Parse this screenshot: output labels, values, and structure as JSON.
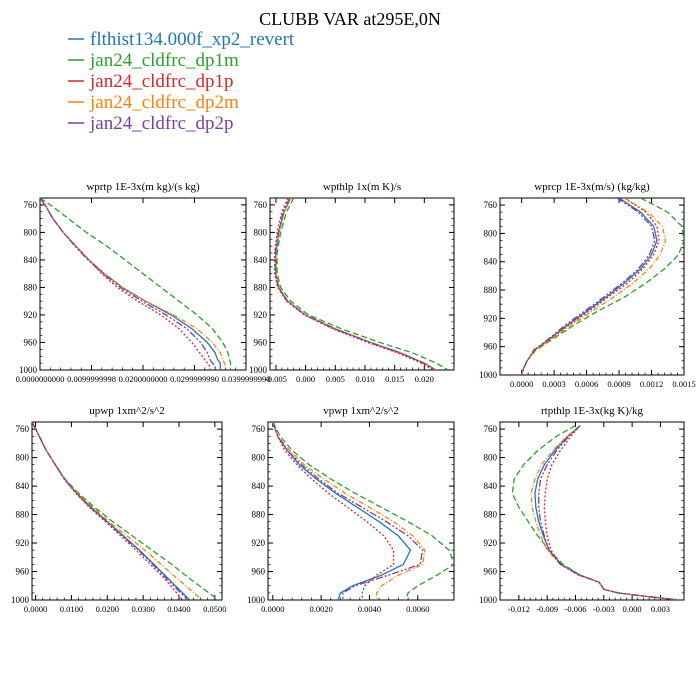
{
  "title": "CLUBB VAR at295E,0N",
  "legend": [
    {
      "name": "flthist134.000f_xp2_revert",
      "color": "#1f77b4"
    },
    {
      "name": "jan24_cldfrc_dp1m",
      "color": "#2ca02c"
    },
    {
      "name": "jan24_cldfrc_dp1p",
      "color": "#d62728"
    },
    {
      "name": "jan24_cldfrc_dp2m",
      "color": "#ff7f0e"
    },
    {
      "name": "jan24_cldfrc_dp2p",
      "color": "#7b3fa0"
    }
  ],
  "chart_data": [
    {
      "type": "line",
      "title": "wprtp  1E-3x(m kg)/(s kg)",
      "xlim": [
        0,
        0.04
      ],
      "ylim": [
        750,
        1000
      ],
      "y_inverted": true,
      "xticks": [
        0,
        0.01,
        0.02,
        0.03,
        0.04
      ],
      "xtick_labels": [
        "0.0000000000",
        "0.0099999998",
        "0.0200000000",
        "0.0299999990",
        "0.0399999990"
      ],
      "yticks": [
        760,
        800,
        840,
        880,
        920,
        960,
        1000
      ],
      "y": [
        750,
        760,
        780,
        800,
        820,
        840,
        860,
        880,
        900,
        920,
        940,
        960,
        975,
        985,
        990,
        995,
        1000
      ],
      "series": [
        {
          "x": [
            0.0,
            0.001,
            0.0025,
            0.0045,
            0.007,
            0.0095,
            0.0125,
            0.016,
            0.0205,
            0.0255,
            0.0295,
            0.0325,
            0.034,
            0.0345,
            0.035,
            0.035,
            0.035
          ]
        },
        {
          "x": [
            0.0,
            0.002,
            0.0055,
            0.009,
            0.013,
            0.0165,
            0.02,
            0.0235,
            0.027,
            0.0305,
            0.0335,
            0.0355,
            0.0365,
            0.0368,
            0.037,
            0.037,
            0.037
          ]
        },
        {
          "x": [
            0.0,
            0.001,
            0.0025,
            0.0045,
            0.007,
            0.0095,
            0.012,
            0.015,
            0.019,
            0.0235,
            0.027,
            0.0295,
            0.031,
            0.032,
            0.0325,
            0.033,
            0.033
          ]
        },
        {
          "x": [
            0.0,
            0.001,
            0.0025,
            0.0045,
            0.007,
            0.0095,
            0.0125,
            0.016,
            0.0205,
            0.026,
            0.0305,
            0.0335,
            0.035,
            0.0355,
            0.0358,
            0.036,
            0.036
          ]
        },
        {
          "x": [
            0.0,
            0.001,
            0.0025,
            0.0045,
            0.0068,
            0.0093,
            0.0123,
            0.0156,
            0.0198,
            0.0245,
            0.0285,
            0.0312,
            0.0325,
            0.033,
            0.0335,
            0.034,
            0.034
          ]
        }
      ]
    },
    {
      "type": "line",
      "title": "wpthlp  1x(m K)/s",
      "xlim": [
        -0.006,
        0.025
      ],
      "ylim": [
        750,
        1000
      ],
      "y_inverted": true,
      "xticks": [
        -0.005,
        0,
        0.005,
        0.01,
        0.015,
        0.02
      ],
      "xtick_labels": [
        "-0.005",
        "0.000",
        "0.005",
        "0.010",
        "0.015",
        "0.020"
      ],
      "yticks": [
        760,
        800,
        840,
        880,
        920,
        960,
        1000
      ],
      "y": [
        750,
        770,
        800,
        830,
        860,
        880,
        900,
        920,
        940,
        960,
        975,
        990,
        1000
      ],
      "series": [
        {
          "x": [
            -0.0025,
            -0.0036,
            -0.0045,
            -0.005,
            -0.005,
            -0.0045,
            -0.003,
            0.0,
            0.005,
            0.011,
            0.016,
            0.02,
            0.022
          ]
        },
        {
          "x": [
            -0.002,
            -0.0032,
            -0.0042,
            -0.0048,
            -0.0048,
            -0.0042,
            -0.0025,
            0.0005,
            0.006,
            0.0125,
            0.018,
            0.022,
            0.024
          ]
        },
        {
          "x": [
            -0.003,
            -0.004,
            -0.0048,
            -0.0052,
            -0.0052,
            -0.0047,
            -0.0032,
            -0.0002,
            0.0045,
            0.0105,
            0.0155,
            0.0195,
            0.0215
          ]
        },
        {
          "x": [
            -0.0025,
            -0.0036,
            -0.0045,
            -0.005,
            -0.005,
            -0.0045,
            -0.003,
            0.0,
            0.005,
            0.011,
            0.016,
            0.02,
            0.022
          ]
        },
        {
          "x": [
            -0.0027,
            -0.0038,
            -0.0046,
            -0.0051,
            -0.0051,
            -0.0046,
            -0.0031,
            -0.0001,
            0.0048,
            0.0108,
            0.0158,
            0.0198,
            0.0218
          ]
        }
      ]
    },
    {
      "type": "line",
      "title": "wprcp  1E-3x(m/s) (kg/kg)",
      "xlim": [
        -0.0002,
        0.0015
      ],
      "ylim": [
        750,
        1000
      ],
      "y_inverted": true,
      "xticks": [
        0,
        0.0003,
        0.0006,
        0.0009,
        0.0012,
        0.0015
      ],
      "xtick_labels": [
        "0.0000",
        "0.0003",
        "0.0006",
        "0.0009",
        "0.0012",
        "0.0015"
      ],
      "yticks": [
        760,
        800,
        840,
        880,
        920,
        960,
        1000
      ],
      "y": [
        750,
        770,
        790,
        810,
        830,
        850,
        870,
        890,
        910,
        930,
        950,
        965,
        980,
        990,
        1000
      ],
      "series": [
        {
          "x": [
            0.0009,
            0.0011,
            0.00122,
            0.00125,
            0.0012,
            0.0011,
            0.00095,
            0.00078,
            0.0006,
            0.00042,
            0.00025,
            0.00012,
            5e-05,
            2e-05,
            0.0
          ]
        },
        {
          "x": [
            0.0011,
            0.00135,
            0.00148,
            0.0015,
            0.00145,
            0.00132,
            0.00115,
            0.00095,
            0.0007,
            0.00048,
            0.00028,
            0.00013,
            5e-05,
            2e-05,
            0.0
          ]
        },
        {
          "x": [
            0.00095,
            0.00115,
            0.00125,
            0.00127,
            0.00122,
            0.00112,
            0.00098,
            0.0008,
            0.00062,
            0.00043,
            0.00026,
            0.00012,
            5e-05,
            2e-05,
            0.0
          ]
        },
        {
          "x": [
            0.00095,
            0.00117,
            0.0013,
            0.00133,
            0.00128,
            0.00118,
            0.00103,
            0.00085,
            0.00065,
            0.00045,
            0.00027,
            0.00012,
            5e-05,
            2e-05,
            0.0
          ]
        },
        {
          "x": [
            0.00088,
            0.00108,
            0.0012,
            0.00123,
            0.00118,
            0.00108,
            0.00093,
            0.00076,
            0.00058,
            0.0004,
            0.00024,
            0.00011,
            5e-05,
            2e-05,
            0.0
          ]
        }
      ]
    },
    {
      "type": "line",
      "title": "upwp  1xm^2/s^2",
      "xlim": [
        -0.001,
        0.052
      ],
      "ylim": [
        750,
        1000
      ],
      "y_inverted": true,
      "xticks": [
        0,
        0.01,
        0.02,
        0.03,
        0.04,
        0.05
      ],
      "xtick_labels": [
        "0.0000",
        "0.0100",
        "0.0200",
        "0.0300",
        "0.0400",
        "0.0500"
      ],
      "yticks": [
        760,
        800,
        840,
        880,
        920,
        960,
        1000
      ],
      "y": [
        750,
        770,
        790,
        810,
        830,
        850,
        870,
        890,
        910,
        930,
        950,
        970,
        985,
        1000
      ],
      "series": [
        {
          "x": [
            -0.001,
            0.001,
            0.003,
            0.0055,
            0.008,
            0.0115,
            0.0155,
            0.02,
            0.0245,
            0.029,
            0.033,
            0.037,
            0.04,
            0.043
          ]
        },
        {
          "x": [
            -0.001,
            0.001,
            0.003,
            0.0055,
            0.0082,
            0.012,
            0.0165,
            0.0215,
            0.027,
            0.0325,
            0.038,
            0.043,
            0.047,
            0.051
          ]
        },
        {
          "x": [
            -0.001,
            0.001,
            0.003,
            0.0055,
            0.008,
            0.0112,
            0.015,
            0.0195,
            0.0238,
            0.028,
            0.032,
            0.036,
            0.0385,
            0.041
          ]
        },
        {
          "x": [
            -0.001,
            0.001,
            0.003,
            0.0055,
            0.0081,
            0.0117,
            0.016,
            0.0205,
            0.0255,
            0.0305,
            0.035,
            0.0395,
            0.043,
            0.0465
          ]
        },
        {
          "x": [
            -0.001,
            0.001,
            0.003,
            0.0055,
            0.008,
            0.0114,
            0.0153,
            0.0198,
            0.0242,
            0.0287,
            0.0327,
            0.0365,
            0.0395,
            0.0425
          ]
        }
      ]
    },
    {
      "type": "line",
      "title": "vpwp  1xm^2/s^2",
      "xlim": [
        -0.0002,
        0.0075
      ],
      "ylim": [
        750,
        1000
      ],
      "y_inverted": true,
      "xticks": [
        0,
        0.002,
        0.004,
        0.006
      ],
      "xtick_labels": [
        "0.0000",
        "0.0020",
        "0.0040",
        "0.0060"
      ],
      "yticks": [
        760,
        800,
        840,
        880,
        920,
        960,
        1000
      ],
      "y": [
        750,
        770,
        790,
        810,
        830,
        850,
        870,
        890,
        910,
        930,
        950,
        965,
        980,
        990,
        1000
      ],
      "series": [
        {
          "x": [
            0.0,
            0.0002,
            0.0006,
            0.0011,
            0.0018,
            0.0026,
            0.0035,
            0.0044,
            0.0052,
            0.0057,
            0.0054,
            0.0045,
            0.0033,
            0.0028,
            0.0027
          ]
        },
        {
          "x": [
            0.0,
            0.0003,
            0.0008,
            0.0015,
            0.0024,
            0.0034,
            0.0045,
            0.0056,
            0.0066,
            0.0073,
            0.0075,
            0.0068,
            0.006,
            0.0056,
            0.0055
          ]
        },
        {
          "x": [
            0.0,
            0.0002,
            0.0005,
            0.001,
            0.0016,
            0.0023,
            0.0031,
            0.0039,
            0.0046,
            0.005,
            0.005,
            0.0043,
            0.0038,
            0.0037,
            0.0037
          ]
        },
        {
          "x": [
            0.0,
            0.0002,
            0.0007,
            0.0013,
            0.0021,
            0.003,
            0.004,
            0.005,
            0.0058,
            0.0063,
            0.0062,
            0.0052,
            0.0045,
            0.0043,
            0.0043
          ]
        },
        {
          "x": [
            0.0,
            0.0002,
            0.0006,
            0.0012,
            0.0019,
            0.0027,
            0.0037,
            0.0047,
            0.0056,
            0.0062,
            0.0061,
            0.0048,
            0.0034,
            0.0029,
            0.0029
          ]
        }
      ]
    },
    {
      "type": "line",
      "title": "rtpthlp  1E-3x(kg K)/kg",
      "xlim": [
        -0.014,
        0.0055
      ],
      "ylim": [
        750,
        1000
      ],
      "y_inverted": true,
      "xticks": [
        -0.012,
        -0.009,
        -0.006,
        -0.003,
        0,
        0.003
      ],
      "xtick_labels": [
        "-0.012",
        "-0.009",
        "-0.006",
        "-0.003",
        "0.000",
        "0.003"
      ],
      "yticks": [
        760,
        800,
        840,
        880,
        920,
        960,
        1000
      ],
      "y": [
        755,
        770,
        790,
        810,
        830,
        850,
        870,
        890,
        910,
        930,
        950,
        965,
        975,
        985,
        990,
        995,
        1000
      ],
      "series": [
        {
          "x": [
            -0.0055,
            -0.0068,
            -0.0082,
            -0.0093,
            -0.01,
            -0.0103,
            -0.0102,
            -0.0099,
            -0.0094,
            -0.0088,
            -0.0075,
            -0.0055,
            -0.0035,
            -0.003,
            -0.0015,
            0.0015,
            0.005
          ]
        },
        {
          "x": [
            -0.006,
            -0.008,
            -0.01,
            -0.0115,
            -0.0125,
            -0.0127,
            -0.012,
            -0.011,
            -0.01,
            -0.0088,
            -0.0073,
            -0.0055,
            -0.0035,
            -0.003,
            -0.0015,
            0.0015,
            0.005
          ]
        },
        {
          "x": [
            -0.0055,
            -0.0065,
            -0.0076,
            -0.0085,
            -0.009,
            -0.0092,
            -0.0093,
            -0.0092,
            -0.009,
            -0.0086,
            -0.0076,
            -0.0057,
            -0.0035,
            -0.003,
            -0.0015,
            0.0015,
            0.005
          ]
        },
        {
          "x": [
            -0.0055,
            -0.0069,
            -0.0084,
            -0.0096,
            -0.0103,
            -0.0107,
            -0.0106,
            -0.0102,
            -0.0097,
            -0.009,
            -0.0076,
            -0.0056,
            -0.0035,
            -0.003,
            -0.0015,
            0.0015,
            0.005
          ]
        },
        {
          "x": [
            -0.0055,
            -0.0067,
            -0.008,
            -0.009,
            -0.0097,
            -0.0099,
            -0.0099,
            -0.0097,
            -0.0093,
            -0.0088,
            -0.0076,
            -0.0056,
            -0.0035,
            -0.003,
            -0.0015,
            0.0015,
            0.005
          ]
        }
      ]
    }
  ]
}
